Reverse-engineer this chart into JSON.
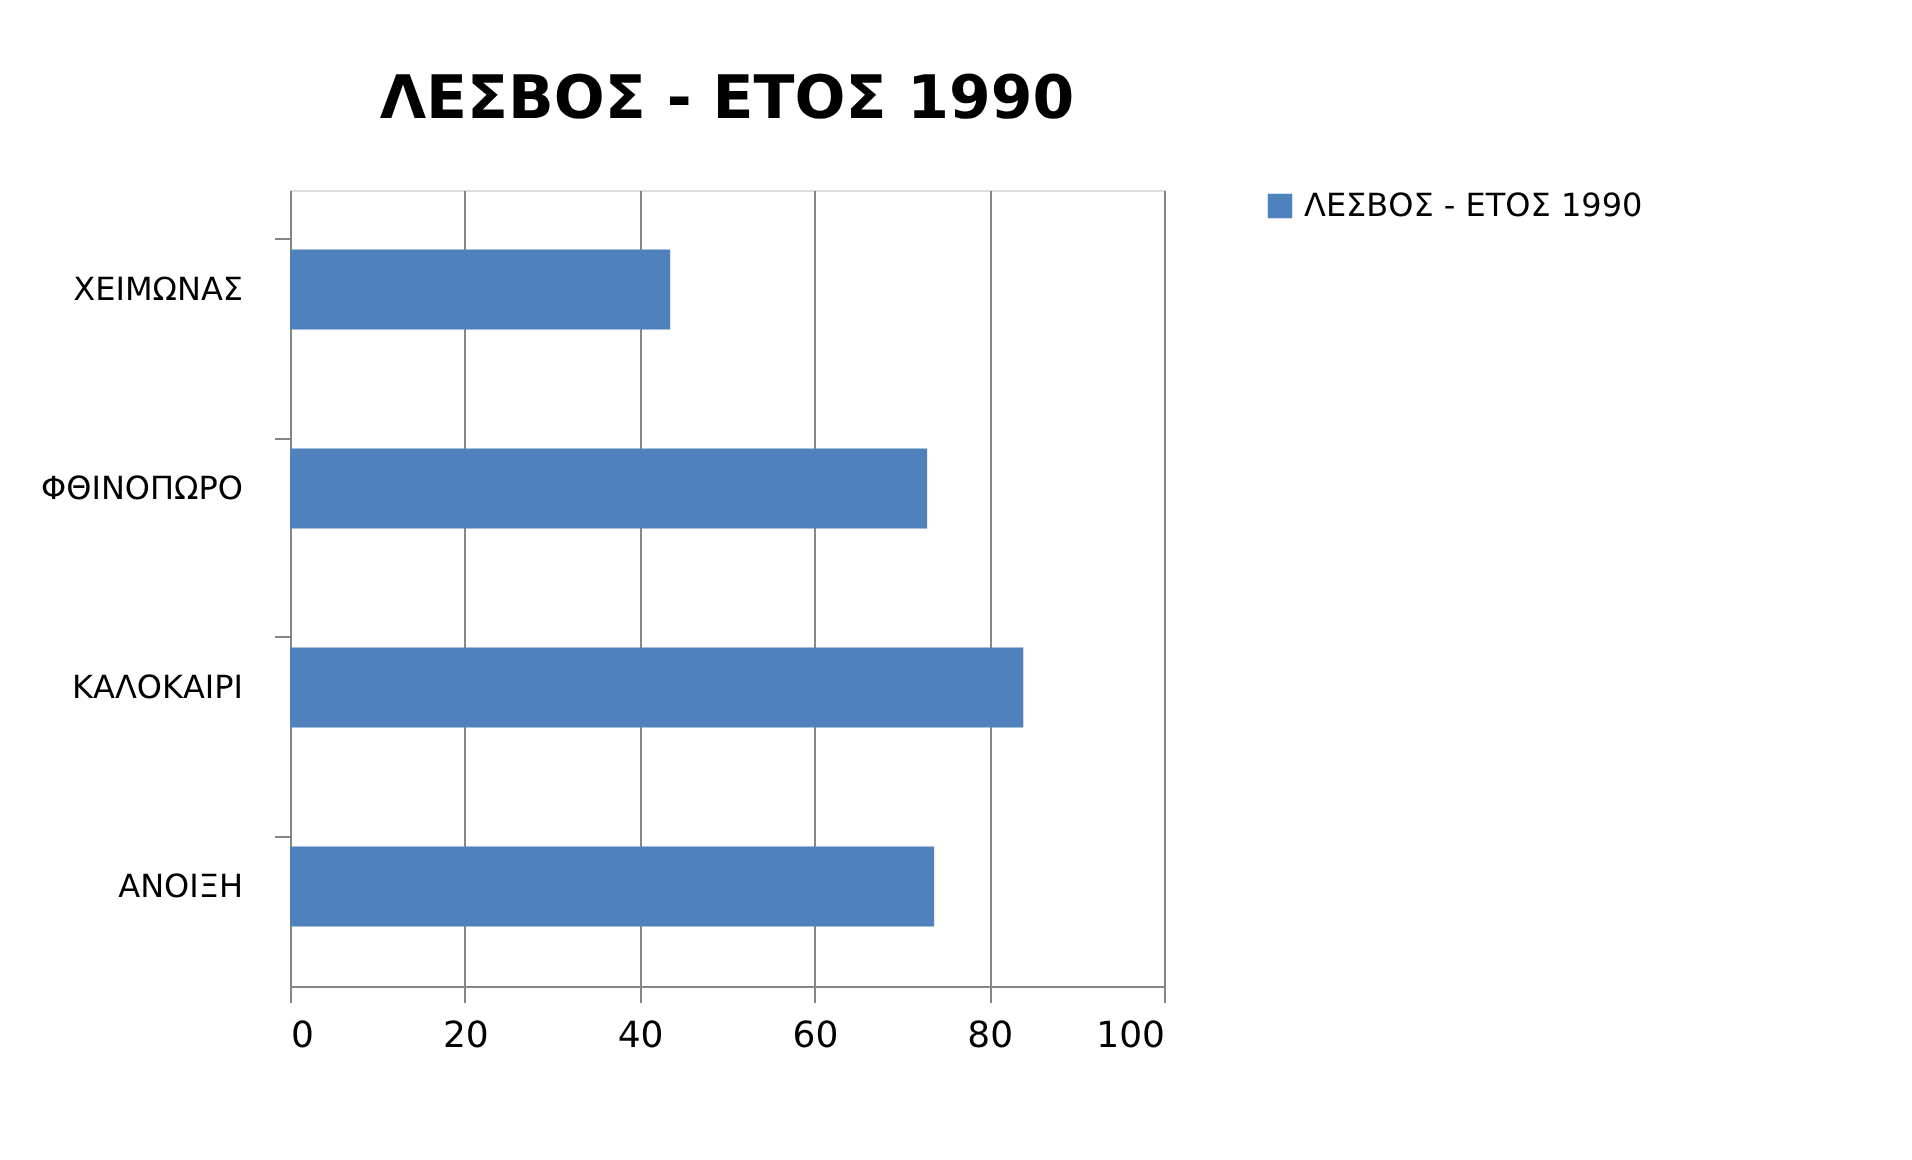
{
  "chart_data": {
    "type": "bar",
    "orientation": "horizontal",
    "title": "ΛΕΣΒΟΣ - ΕΤΟΣ 1990",
    "categories": [
      "ΧΕΙΜΩΝΑΣ",
      "ΦΘΙΝΟΠΩΡΟ",
      "ΚΑΛΟΚΑΙΡΙ",
      "ΑΝΟΙΞΗ"
    ],
    "series": [
      {
        "name": "ΛΕΣΒΟΣ - ΕΤΟΣ 1990",
        "color": "#4f81bd",
        "values": [
          43.5,
          72.9,
          83.9,
          73.7
        ]
      }
    ],
    "xlim": [
      0,
      100
    ],
    "xticks": [
      0,
      20,
      40,
      60,
      80,
      100
    ],
    "grid": "x",
    "legend": "right"
  }
}
